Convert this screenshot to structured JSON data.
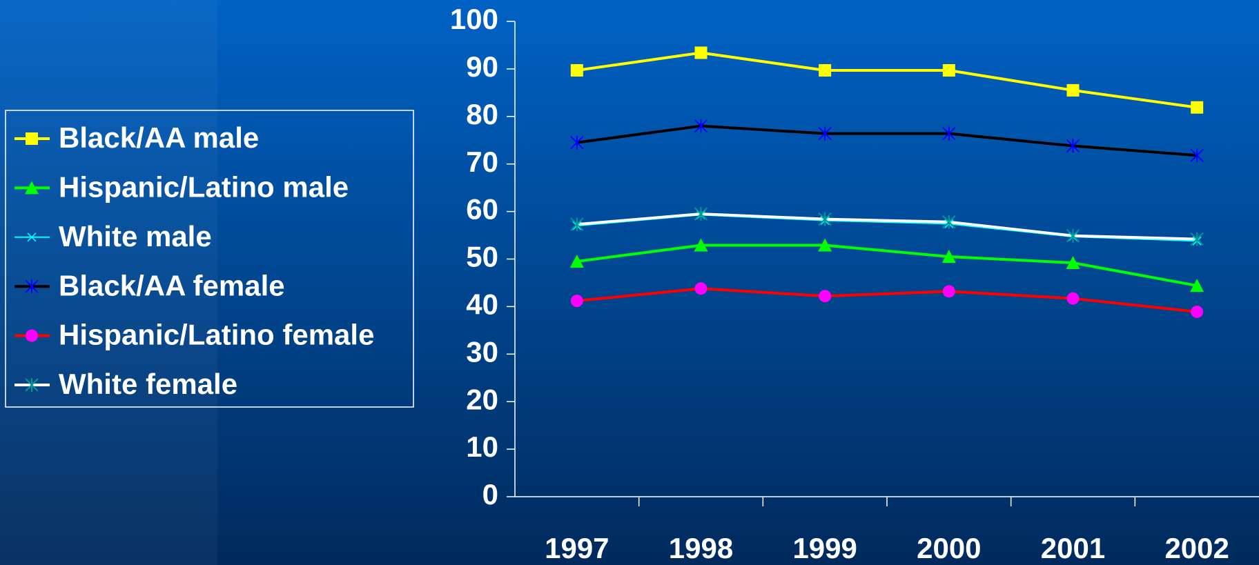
{
  "chart_data": {
    "type": "line",
    "categories": [
      "1997",
      "1998",
      "1999",
      "2000",
      "2001",
      "2002"
    ],
    "ylim": [
      0,
      100
    ],
    "yticks": [
      0,
      10,
      20,
      30,
      40,
      50,
      60,
      70,
      80,
      90,
      100
    ],
    "legend": "left",
    "series": [
      {
        "name": "Black/AA male",
        "color": "#ffff00",
        "marker": "square",
        "marker_color": "#ffff00",
        "values": [
          89.7,
          93.4,
          89.7,
          89.7,
          85.5,
          81.9
        ]
      },
      {
        "name": "Hispanic/Latino male",
        "color": "#00ff00",
        "marker": "triangle",
        "marker_color": "#00ff00",
        "values": [
          49.5,
          52.9,
          52.9,
          50.5,
          49.2,
          44.4
        ]
      },
      {
        "name": "White male",
        "color": "#00ffff",
        "marker": "x",
        "marker_color": "#00ffff",
        "values": [
          57.0,
          59.3,
          58.1,
          57.4,
          54.7,
          53.8
        ]
      },
      {
        "name": "Black/AA female",
        "color": "#000000",
        "marker": "asterisk",
        "marker_color": "#0000ff",
        "values": [
          74.5,
          78.0,
          76.4,
          76.4,
          73.8,
          71.8
        ]
      },
      {
        "name": "Hispanic/Latino female",
        "color": "#ff0000",
        "marker": "circle",
        "marker_color": "#ff00ff",
        "values": [
          41.2,
          43.8,
          42.2,
          43.2,
          41.7,
          38.9
        ]
      },
      {
        "name": "White female",
        "color": "#ffffff",
        "marker": "asterisk",
        "marker_color": "#009999",
        "values": [
          57.3,
          59.5,
          58.4,
          57.8,
          54.9,
          54.2
        ]
      }
    ]
  }
}
